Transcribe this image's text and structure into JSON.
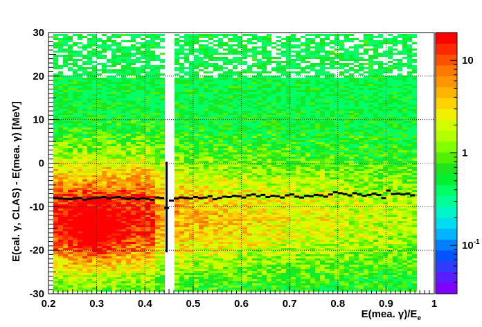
{
  "chart_data": {
    "type": "heatmap",
    "title": "",
    "xlabel": "E(mea. γ)/E",
    "xlabel_subscript": "e",
    "ylabel": "E(cal. γ, CLAS) - E(mea. γ) [MeV]",
    "xlim": [
      0.2,
      1.0
    ],
    "ylim": [
      -30,
      30
    ],
    "x_ticks": [
      "0.2",
      "0.3",
      "0.4",
      "0.5",
      "0.6",
      "0.7",
      "0.8",
      "0.9",
      "1"
    ],
    "y_ticks": [
      "-30",
      "-20",
      "-10",
      "0",
      "10",
      "20",
      "30"
    ],
    "grid": true,
    "z_scale": "log",
    "z_range": [
      0.03,
      20
    ],
    "z_ticks": [
      {
        "value": 0.1,
        "base": "10",
        "exp": "-1"
      },
      {
        "value": 1,
        "base": "1",
        "exp": ""
      },
      {
        "value": 10,
        "base": "10",
        "exp": ""
      }
    ],
    "palette": [
      "#7f00ff",
      "#5a1dff",
      "#2f3bff",
      "#0054ff",
      "#0080ff",
      "#00b4ff",
      "#00dcf0",
      "#00f5c8",
      "#00ff96",
      "#00ff64",
      "#00f032",
      "#1ee61e",
      "#50f000",
      "#82ff00",
      "#b4ff00",
      "#d2ff00",
      "#f0f000",
      "#ffd200",
      "#ffb400",
      "#ff9600",
      "#ff7800",
      "#ff5000",
      "#ff2800",
      "#ff0000"
    ],
    "profile_series": {
      "name": "",
      "color": "#000000",
      "points": [
        {
          "x": 0.215,
          "y": -8.0
        },
        {
          "x": 0.225,
          "y": -8.1
        },
        {
          "x": 0.235,
          "y": -8.2
        },
        {
          "x": 0.245,
          "y": -8.3
        },
        {
          "x": 0.255,
          "y": -8.1
        },
        {
          "x": 0.265,
          "y": -8.0
        },
        {
          "x": 0.275,
          "y": -8.4
        },
        {
          "x": 0.285,
          "y": -8.2
        },
        {
          "x": 0.295,
          "y": -8.0
        },
        {
          "x": 0.305,
          "y": -7.9
        },
        {
          "x": 0.315,
          "y": -7.8
        },
        {
          "x": 0.325,
          "y": -8.1
        },
        {
          "x": 0.335,
          "y": -7.9
        },
        {
          "x": 0.345,
          "y": -7.8
        },
        {
          "x": 0.355,
          "y": -8.0
        },
        {
          "x": 0.365,
          "y": -8.2
        },
        {
          "x": 0.375,
          "y": -8.0
        },
        {
          "x": 0.385,
          "y": -8.3
        },
        {
          "x": 0.395,
          "y": -8.1
        },
        {
          "x": 0.405,
          "y": -8.2
        },
        {
          "x": 0.415,
          "y": -8.4
        },
        {
          "x": 0.425,
          "y": -7.9
        },
        {
          "x": 0.435,
          "y": -8.0
        },
        {
          "x": 0.445,
          "y": -10.3,
          "err_low": -20.5,
          "err_high": 0.3
        },
        {
          "x": 0.455,
          "y": -8.6
        },
        {
          "x": 0.465,
          "y": -8.1
        },
        {
          "x": 0.475,
          "y": -7.9
        },
        {
          "x": 0.485,
          "y": -8.0
        },
        {
          "x": 0.495,
          "y": -8.1
        },
        {
          "x": 0.505,
          "y": -7.8
        },
        {
          "x": 0.515,
          "y": -8.0
        },
        {
          "x": 0.525,
          "y": -7.9
        },
        {
          "x": 0.535,
          "y": -7.6
        },
        {
          "x": 0.545,
          "y": -8.3
        },
        {
          "x": 0.555,
          "y": -8.0
        },
        {
          "x": 0.565,
          "y": -7.7
        },
        {
          "x": 0.575,
          "y": -7.8
        },
        {
          "x": 0.585,
          "y": -7.5
        },
        {
          "x": 0.595,
          "y": -7.6
        },
        {
          "x": 0.605,
          "y": -7.9
        },
        {
          "x": 0.615,
          "y": -7.4
        },
        {
          "x": 0.625,
          "y": -7.2
        },
        {
          "x": 0.635,
          "y": -7.6
        },
        {
          "x": 0.645,
          "y": -7.3
        },
        {
          "x": 0.655,
          "y": -7.8
        },
        {
          "x": 0.665,
          "y": -7.5
        },
        {
          "x": 0.675,
          "y": -7.6
        },
        {
          "x": 0.685,
          "y": -7.9
        },
        {
          "x": 0.695,
          "y": -7.4
        },
        {
          "x": 0.705,
          "y": -7.2
        },
        {
          "x": 0.715,
          "y": -7.7
        },
        {
          "x": 0.725,
          "y": -7.9
        },
        {
          "x": 0.735,
          "y": -7.5
        },
        {
          "x": 0.745,
          "y": -7.6
        },
        {
          "x": 0.755,
          "y": -7.3
        },
        {
          "x": 0.765,
          "y": -7.4
        },
        {
          "x": 0.775,
          "y": -7.7
        },
        {
          "x": 0.785,
          "y": -7.2
        },
        {
          "x": 0.795,
          "y": -6.7
        },
        {
          "x": 0.805,
          "y": -6.9
        },
        {
          "x": 0.815,
          "y": -7.1
        },
        {
          "x": 0.825,
          "y": -7.4
        },
        {
          "x": 0.835,
          "y": -6.9
        },
        {
          "x": 0.845,
          "y": -7.2
        },
        {
          "x": 0.855,
          "y": -7.5
        },
        {
          "x": 0.865,
          "y": -7.3
        },
        {
          "x": 0.875,
          "y": -7.0
        },
        {
          "x": 0.885,
          "y": -7.3
        },
        {
          "x": 0.895,
          "y": -8.0
        },
        {
          "x": 0.905,
          "y": -6.3
        },
        {
          "x": 0.915,
          "y": -7.1
        },
        {
          "x": 0.925,
          "y": -7.0
        },
        {
          "x": 0.935,
          "y": -7.2
        },
        {
          "x": 0.945,
          "y": -7.0
        },
        {
          "x": 0.955,
          "y": -7.4
        }
      ]
    }
  }
}
